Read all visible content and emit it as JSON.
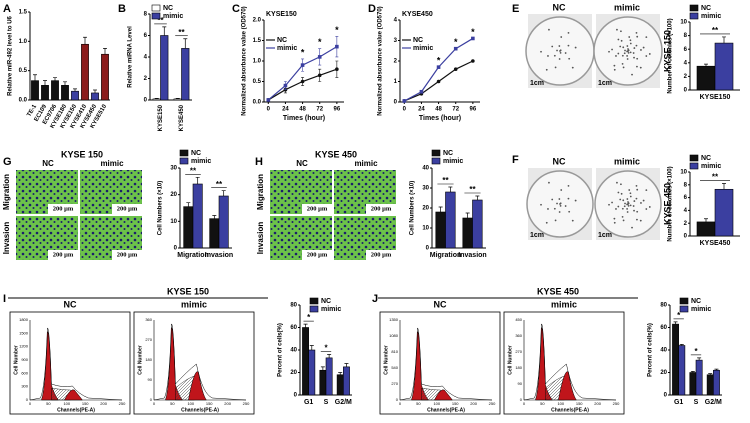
{
  "panel_letters": [
    "A",
    "B",
    "C",
    "D",
    "E",
    "F",
    "G",
    "H",
    "I",
    "J"
  ],
  "chart_data": [
    {
      "type": "bar",
      "y_label": "Relative miR-492 level to U6",
      "categories": [
        "TE-1",
        "EC109",
        "EC9706",
        "KYSE180",
        "KYSE150",
        "KYSE410",
        "KYSE450",
        "KYSE510"
      ],
      "values": [
        0.33,
        0.25,
        0.33,
        0.25,
        0.15,
        0.95,
        0.12,
        0.78
      ],
      "errors": [
        0.1,
        0.08,
        0.05,
        0.06,
        0.04,
        0.12,
        0.05,
        0.1
      ],
      "colors": [
        "#111111",
        "#111111",
        "#111111",
        "#111111",
        "#3b3fa0",
        "#8b1a1a",
        "#3b3fa0",
        "#8b1a1a"
      ],
      "ylim": [
        0,
        1.5
      ],
      "yticks": [
        {
          "value": 0,
          "label": "0.0"
        },
        0.5,
        {
          "value": 1,
          "label": "1.0"
        },
        1.5
      ]
    },
    {
      "type": "bar",
      "y_label": "Relative miRNA Level",
      "categories": [
        "KYSE150",
        "KYSE450"
      ],
      "series": [
        {
          "name": "NC",
          "color": "#ffffff",
          "values": [
            0.1,
            0.1
          ],
          "errors": [
            0.05,
            0.05
          ]
        },
        {
          "name": "mimic",
          "color": "#3b3fa0",
          "values": [
            6,
            4.8
          ],
          "errors": [
            0.8,
            0.9
          ]
        }
      ],
      "annotations": [
        "**",
        "**"
      ],
      "ylim": [
        0,
        8
      ],
      "yticks": [
        0,
        2,
        4,
        6,
        8
      ]
    },
    {
      "type": "line",
      "title": "KYSE150",
      "x_label": "Times (hour)",
      "y_label": "Normalized absorbance value (OD570)",
      "x": [
        0,
        24,
        48,
        72,
        96
      ],
      "series": [
        {
          "name": "NC",
          "color": "#111111",
          "values": [
            0.05,
            0.3,
            0.5,
            0.65,
            0.8
          ],
          "errors": [
            0.02,
            0.08,
            0.1,
            0.15,
            0.2
          ]
        },
        {
          "name": "mimic",
          "color": "#3b3fa0",
          "values": [
            0.05,
            0.4,
            0.9,
            1.1,
            1.35
          ],
          "errors": [
            0.02,
            0.1,
            0.15,
            0.2,
            0.25
          ]
        }
      ],
      "annotations": [
        {
          "text": "*",
          "x": 48
        },
        {
          "text": "*",
          "x": 72
        },
        {
          "text": "*",
          "x": 96
        }
      ],
      "xlim": [
        -6,
        106
      ],
      "xticks": [
        0,
        24,
        48,
        72,
        96
      ],
      "ylim": [
        0,
        2
      ],
      "yticks": [
        {
          "value": 0,
          "label": "0.0"
        },
        0.5,
        {
          "value": 1,
          "label": "1.0"
        },
        1.5,
        {
          "value": 2,
          "label": "2.0"
        }
      ]
    },
    {
      "type": "line",
      "title": "KYSE450",
      "x_label": "Times (hour)",
      "y_label": "Normalized absorbance value (OD570)",
      "x": [
        0,
        24,
        48,
        72,
        96
      ],
      "series": [
        {
          "name": "NC",
          "color": "#111111",
          "values": [
            0.05,
            0.4,
            1,
            1.6,
            2
          ]
        },
        {
          "name": "mimic",
          "color": "#3b3fa0",
          "values": [
            0.05,
            0.5,
            1.7,
            2.6,
            3.1
          ]
        }
      ],
      "annotations": [
        {
          "text": "*",
          "x": 48
        },
        {
          "text": "*",
          "x": 72
        },
        {
          "text": "*",
          "x": 96
        }
      ],
      "xlim": [
        -6,
        106
      ],
      "xticks": [
        0,
        24,
        48,
        72,
        96
      ],
      "ylim": [
        0,
        4
      ],
      "yticks": [
        0,
        1,
        2,
        3,
        4
      ]
    },
    {
      "type": "bar",
      "y_label": "Number of colonies (×100)",
      "categories": [
        "KYSE150"
      ],
      "series": [
        {
          "name": "NC",
          "color": "#111111",
          "values": [
            3.5
          ],
          "errors": [
            0.3
          ]
        },
        {
          "name": "mimic",
          "color": "#3b3fa0",
          "values": [
            6.9
          ],
          "errors": [
            0.9
          ]
        }
      ],
      "annotations": [
        "**"
      ],
      "ylim": [
        0,
        10
      ],
      "yticks": [
        0,
        2,
        4,
        6,
        8,
        10
      ]
    },
    {
      "type": "bar",
      "y_label": "Number of colonies (×100)",
      "categories": [
        "KYSE450"
      ],
      "series": [
        {
          "name": "NC",
          "color": "#111111",
          "values": [
            2.2
          ],
          "errors": [
            0.5
          ]
        },
        {
          "name": "mimic",
          "color": "#3b3fa0",
          "values": [
            7.3
          ],
          "errors": [
            0.9
          ]
        }
      ],
      "annotations": [
        "**"
      ],
      "ylim": [
        0,
        10
      ],
      "yticks": [
        0,
        2,
        4,
        6,
        8,
        10
      ]
    },
    {
      "type": "bar",
      "y_label": "Cell Numbers (×10)",
      "categories": [
        "Migration",
        "Invasion"
      ],
      "series": [
        {
          "name": "NC",
          "color": "#111111",
          "values": [
            15.5,
            11
          ],
          "errors": [
            1.5,
            1.2
          ]
        },
        {
          "name": "mimic",
          "color": "#3b3fa0",
          "values": [
            24,
            19.5
          ],
          "errors": [
            2.5,
            2
          ]
        }
      ],
      "annotations": [
        "**",
        "**"
      ],
      "ylim": [
        0,
        30
      ],
      "yticks": [
        0,
        10,
        20,
        30
      ]
    },
    {
      "type": "bar",
      "y_label": "Cell Numbers (×10)",
      "categories": [
        "Migration",
        "Invasion"
      ],
      "series": [
        {
          "name": "NC",
          "color": "#111111",
          "values": [
            18,
            15
          ],
          "errors": [
            2.5,
            2.5
          ]
        },
        {
          "name": "mimic",
          "color": "#3b3fa0",
          "values": [
            28,
            24
          ],
          "errors": [
            2.5,
            2
          ]
        }
      ],
      "annotations": [
        "**",
        "**"
      ],
      "ylim": [
        0,
        40
      ],
      "yticks": [
        0,
        10,
        20,
        30,
        40
      ]
    },
    {
      "type": "bar",
      "y_label": "Percent of cells(%)",
      "categories": [
        "G1",
        "S",
        "G2/M"
      ],
      "series": [
        {
          "name": "NC",
          "color": "#111111",
          "values": [
            60,
            22,
            18
          ],
          "errors": [
            3,
            3,
            2
          ]
        },
        {
          "name": "mimic",
          "color": "#3b3fa0",
          "values": [
            40,
            33,
            25
          ],
          "errors": [
            4,
            3,
            3
          ]
        }
      ],
      "annotations": [
        "*",
        "*",
        null
      ],
      "ylim": [
        0,
        80
      ],
      "yticks": [
        0,
        20,
        40,
        60,
        80
      ]
    },
    {
      "type": "bar",
      "y_label": "Percent of cells(%)",
      "categories": [
        "G1",
        "S",
        "G2/M"
      ],
      "series": [
        {
          "name": "NC",
          "color": "#111111",
          "values": [
            63,
            20,
            18
          ],
          "errors": [
            2,
            1,
            1
          ]
        },
        {
          "name": "mimic",
          "color": "#3b3fa0",
          "values": [
            44,
            31,
            22
          ],
          "errors": [
            1,
            2,
            1
          ]
        }
      ],
      "annotations": [
        "*",
        "*",
        null
      ],
      "ylim": [
        0,
        80
      ],
      "yticks": [
        0,
        20,
        40,
        60,
        80
      ]
    }
  ],
  "colony_images": [
    {
      "cell_line": "KYSE 150",
      "labels": [
        "NC",
        "mimic"
      ],
      "scale": "1cm"
    },
    {
      "cell_line": "KYSE 450",
      "labels": [
        "NC",
        "mimic"
      ],
      "scale": "1cm"
    }
  ],
  "transwell_images": [
    {
      "title": "KYSE 150",
      "columns": [
        "NC",
        "mimic"
      ],
      "rows": [
        "Migration",
        "Invasion"
      ],
      "scale": "200 µm"
    },
    {
      "title": "KYSE 450",
      "columns": [
        "NC",
        "mimic"
      ],
      "rows": [
        "Migration",
        "Invasion"
      ],
      "scale": "200 µm"
    }
  ],
  "flow_panels": [
    {
      "title": "KYSE 150",
      "plots": [
        {
          "label": "NC",
          "x_label": "Channels(PE-A)",
          "y_label": "Cell Number",
          "x_ticks": [
            0,
            50,
            100,
            150,
            200,
            250
          ],
          "y_ticks": [
            0,
            300,
            600,
            900,
            1200,
            1500,
            1800
          ]
        },
        {
          "label": "mimic",
          "x_label": "Channels(PE-A)",
          "y_label": "Cell Number",
          "x_ticks": [
            0,
            50,
            100,
            150,
            200,
            250
          ],
          "y_ticks": [
            0,
            90,
            180,
            270,
            360
          ]
        }
      ]
    },
    {
      "title": "KYSE 450",
      "plots": [
        {
          "label": "NC",
          "x_label": "Channels(PE-A)",
          "y_label": "Cell Number",
          "x_ticks": [
            0,
            50,
            100,
            150,
            200,
            250
          ],
          "y_ticks": [
            0,
            270,
            540,
            810,
            1080,
            1350
          ]
        },
        {
          "label": "mimic",
          "x_label": "Channels(PE-A)",
          "y_label": "Cell Number",
          "x_ticks": [
            0,
            50,
            100,
            150,
            200,
            250
          ],
          "y_ticks": [
            0,
            90,
            180,
            270,
            360,
            450
          ]
        }
      ]
    }
  ]
}
